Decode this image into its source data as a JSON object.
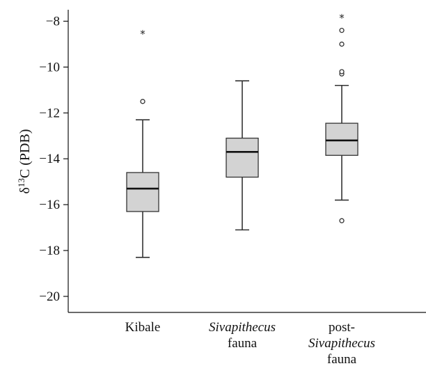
{
  "chart_data": {
    "type": "box",
    "ylabel": {
      "prefix": "δ",
      "sup": "13",
      "suffix": "C (PDB)"
    },
    "ylim": [
      -20.7,
      -7.5
    ],
    "yticks": [
      -20,
      -18,
      -16,
      -14,
      -12,
      -10,
      -8
    ],
    "yticklabels": [
      "−20",
      "−18",
      "−16",
      "−14",
      "−12",
      "−10",
      "−8"
    ],
    "groups": [
      {
        "label_lines": [
          {
            "text": "Kibale",
            "italic": false
          }
        ],
        "min": -18.3,
        "q1": -16.3,
        "median": -15.3,
        "q3": -14.6,
        "max": -12.3,
        "outliers": [
          -11.5
        ],
        "extremes": [
          -8.5
        ]
      },
      {
        "label_lines": [
          {
            "text": "Sivapithecus",
            "italic": true
          },
          {
            "text": "fauna",
            "italic": false
          }
        ],
        "min": -17.1,
        "q1": -14.8,
        "median": -13.7,
        "q3": -13.1,
        "max": -10.6,
        "outliers": [],
        "extremes": []
      },
      {
        "label_lines": [
          {
            "text": "post-",
            "italic": false
          },
          {
            "text": "Sivapithecus",
            "italic": true
          },
          {
            "text": "fauna",
            "italic": false
          }
        ],
        "min": -15.8,
        "q1": -13.85,
        "median": -13.2,
        "q3": -12.45,
        "max": -10.8,
        "outliers": [
          -10.3,
          -10.2,
          -9.0,
          -8.4,
          -16.7
        ],
        "extremes": [
          -7.8
        ]
      }
    ],
    "colors": {
      "box_fill": "#d3d3d3",
      "stroke": "#333333",
      "median": "#111111"
    }
  }
}
